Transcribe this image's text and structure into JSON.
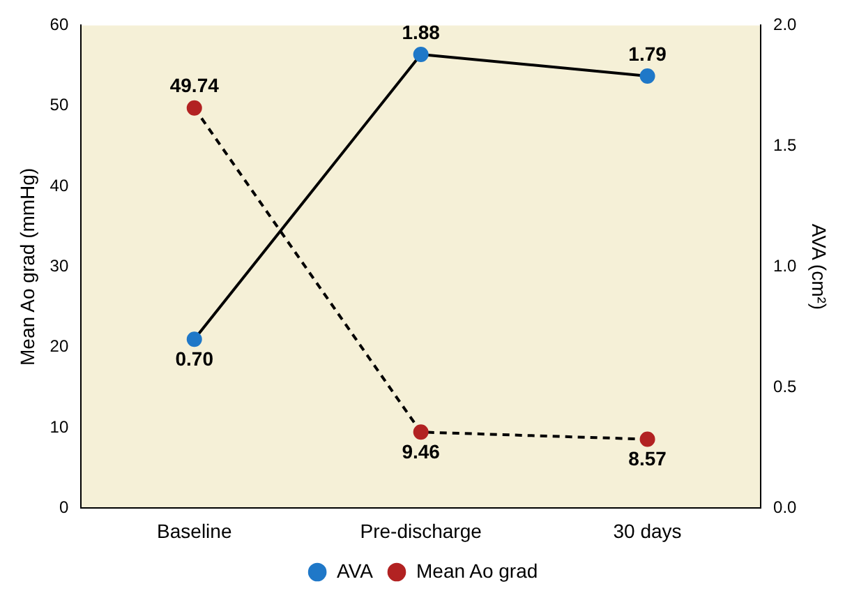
{
  "chart_data": {
    "type": "line",
    "categories": [
      "Baseline",
      "Pre-discharge",
      "30 days"
    ],
    "ylabel": "Mean Ao grad (mmHg)",
    "y2label": "AVA (cm²)",
    "ylim": [
      0,
      60
    ],
    "yticks": [
      0,
      10,
      20,
      30,
      40,
      50,
      60
    ],
    "y2lim": [
      0,
      2
    ],
    "y2ticks": [
      {
        "value": 0,
        "label": "0.0"
      },
      {
        "value": 0.5,
        "label": "0.5"
      },
      {
        "value": 1,
        "label": "1.0"
      },
      {
        "value": 1.5,
        "label": "1.5"
      },
      {
        "value": 2,
        "label": "2.0"
      }
    ],
    "series": [
      {
        "name": "AVA",
        "color": "#1f78c8",
        "values": [
          0.7,
          1.88,
          1.79
        ],
        "axis": "y2",
        "line_style": "solid",
        "value_labels": [
          "0.70",
          "1.88",
          "1.79"
        ]
      },
      {
        "name": "Mean Ao grad",
        "color": "#b22222",
        "values": [
          49.74,
          9.46,
          8.57
        ],
        "axis": "y",
        "line_style": "dashed",
        "value_labels": [
          "49.74",
          "9.46",
          "8.57"
        ]
      }
    ],
    "marker": "circle",
    "grid": false,
    "legend": "bottom"
  }
}
